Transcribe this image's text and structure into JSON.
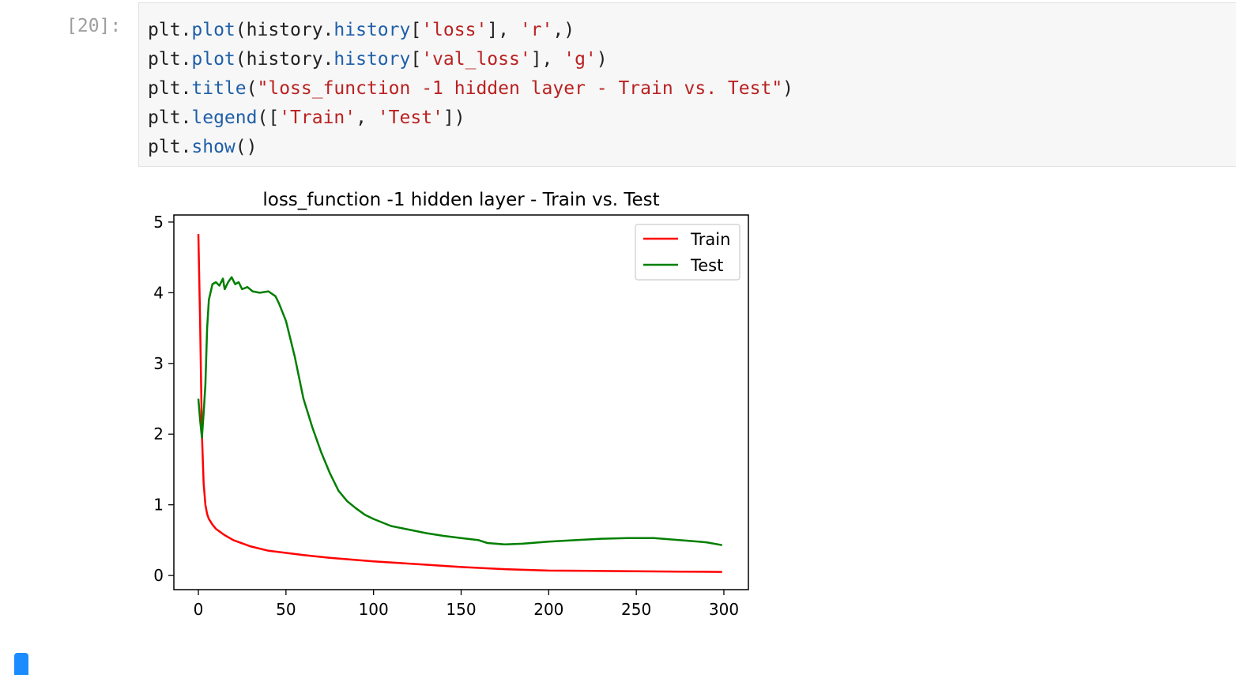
{
  "cell": {
    "prompt": "[20]:",
    "code_lines": [
      [
        {
          "t": "plt.",
          "c": "plain"
        },
        {
          "t": "plot",
          "c": "fn"
        },
        {
          "t": "(history.",
          "c": "plain"
        },
        {
          "t": "history",
          "c": "fn"
        },
        {
          "t": "[",
          "c": "plain"
        },
        {
          "t": "'loss'",
          "c": "str"
        },
        {
          "t": "], ",
          "c": "plain"
        },
        {
          "t": "'r'",
          "c": "str"
        },
        {
          "t": ",)",
          "c": "plain"
        }
      ],
      [
        {
          "t": "plt.",
          "c": "plain"
        },
        {
          "t": "plot",
          "c": "fn"
        },
        {
          "t": "(history.",
          "c": "plain"
        },
        {
          "t": "history",
          "c": "fn"
        },
        {
          "t": "[",
          "c": "plain"
        },
        {
          "t": "'val_loss'",
          "c": "str"
        },
        {
          "t": "], ",
          "c": "plain"
        },
        {
          "t": "'g'",
          "c": "str"
        },
        {
          "t": ")",
          "c": "plain"
        }
      ],
      [
        {
          "t": "plt.",
          "c": "plain"
        },
        {
          "t": "title",
          "c": "fn"
        },
        {
          "t": "(",
          "c": "plain"
        },
        {
          "t": "\"loss_function -1 hidden layer - Train vs. Test\"",
          "c": "str"
        },
        {
          "t": ")",
          "c": "plain"
        }
      ],
      [
        {
          "t": "plt.",
          "c": "plain"
        },
        {
          "t": "legend",
          "c": "fn"
        },
        {
          "t": "([",
          "c": "plain"
        },
        {
          "t": "'Train'",
          "c": "str"
        },
        {
          "t": ", ",
          "c": "plain"
        },
        {
          "t": "'Test'",
          "c": "str"
        },
        {
          "t": "])",
          "c": "plain"
        }
      ],
      [
        {
          "t": "plt.",
          "c": "plain"
        },
        {
          "t": "show",
          "c": "fn"
        },
        {
          "t": "()",
          "c": "plain"
        }
      ]
    ]
  },
  "chart_data": {
    "type": "line",
    "title": "loss_function -1 hidden layer - Train vs. Test",
    "xlabel": "",
    "ylabel": "",
    "xlim": [
      -14,
      314
    ],
    "ylim": [
      -0.2,
      5.1
    ],
    "xticks": [
      0,
      50,
      100,
      150,
      200,
      250,
      300
    ],
    "yticks": [
      0,
      1,
      2,
      3,
      4,
      5
    ],
    "grid": false,
    "legend": "top-right",
    "colors": {
      "Train": "#ff0000",
      "Test": "#007f00"
    },
    "series": [
      {
        "name": "Train",
        "x": [
          0,
          1,
          2,
          3,
          4,
          5,
          6,
          8,
          10,
          15,
          20,
          30,
          40,
          50,
          60,
          75,
          100,
          125,
          150,
          175,
          200,
          225,
          250,
          275,
          299
        ],
        "values": [
          4.83,
          3.6,
          2.0,
          1.3,
          1.0,
          0.87,
          0.8,
          0.72,
          0.66,
          0.57,
          0.5,
          0.41,
          0.35,
          0.32,
          0.29,
          0.25,
          0.2,
          0.16,
          0.12,
          0.09,
          0.07,
          0.065,
          0.06,
          0.055,
          0.05
        ]
      },
      {
        "name": "Test",
        "x": [
          0,
          1,
          2,
          3,
          4,
          5,
          6,
          8,
          10,
          12,
          14,
          15,
          17,
          19,
          21,
          23,
          25,
          28,
          31,
          35,
          40,
          44,
          46,
          50,
          55,
          60,
          65,
          70,
          75,
          80,
          85,
          90,
          95,
          100,
          110,
          120,
          130,
          140,
          150,
          160,
          165,
          175,
          185,
          200,
          215,
          230,
          245,
          260,
          275,
          290,
          299
        ],
        "values": [
          2.5,
          2.2,
          1.95,
          2.3,
          2.7,
          3.5,
          3.9,
          4.12,
          4.15,
          4.1,
          4.2,
          4.05,
          4.15,
          4.22,
          4.12,
          4.15,
          4.05,
          4.08,
          4.02,
          4.0,
          4.02,
          3.95,
          3.85,
          3.6,
          3.1,
          2.5,
          2.1,
          1.75,
          1.45,
          1.2,
          1.05,
          0.95,
          0.86,
          0.8,
          0.7,
          0.65,
          0.6,
          0.56,
          0.53,
          0.5,
          0.46,
          0.44,
          0.45,
          0.48,
          0.5,
          0.52,
          0.53,
          0.53,
          0.5,
          0.47,
          0.43
        ]
      }
    ]
  }
}
